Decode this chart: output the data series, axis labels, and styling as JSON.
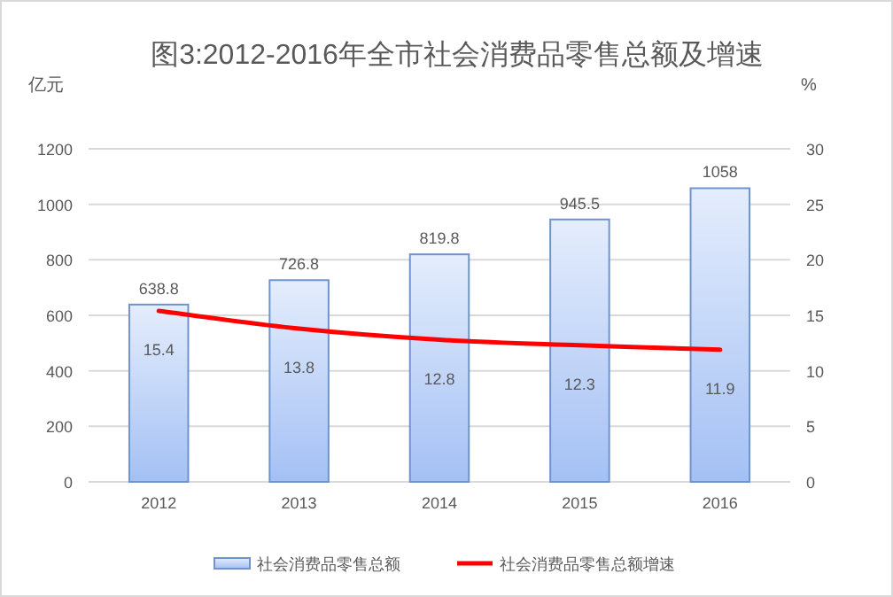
{
  "chart_data": {
    "type": "bar",
    "title": "图3:2012-2016年全市社会消费品零售总额及增速",
    "ylabel": "亿元",
    "y2label": "%",
    "categories": [
      "2012",
      "2013",
      "2014",
      "2015",
      "2016"
    ],
    "series": [
      {
        "name": "社会消费品零售总额",
        "color": "#6f94cc",
        "values": [
          638.8,
          726.8,
          819.8,
          945.5,
          1058
        ]
      },
      {
        "name": "社会消费品零售总额增速",
        "type": "line",
        "axis": "y2",
        "color": "#ff0000",
        "values": [
          15.4,
          13.8,
          12.8,
          12.3,
          11.9
        ]
      }
    ],
    "ylim": [
      0,
      1200
    ],
    "yticks": [
      0,
      200,
      400,
      600,
      800,
      1000,
      1200
    ],
    "y2lim": [
      0,
      30
    ],
    "y2ticks": [
      0,
      5,
      10,
      15,
      20,
      25,
      30
    ],
    "grid": "y",
    "legend": "bottom",
    "data_labels": true,
    "marker": "none"
  }
}
